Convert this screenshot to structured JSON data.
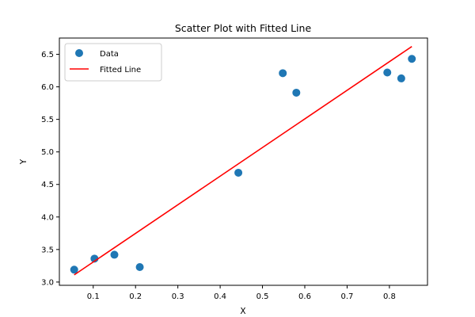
{
  "chart_data": {
    "type": "scatter",
    "title": "Scatter Plot with Fitted Line",
    "xlabel": "X",
    "ylabel": "Y",
    "xlim": [
      0.02,
      0.89
    ],
    "ylim": [
      2.95,
      6.75
    ],
    "xticks": [
      0.1,
      0.2,
      0.3,
      0.4,
      0.5,
      0.6,
      0.7,
      0.8
    ],
    "xtick_labels": [
      "0.1",
      "0.2",
      "0.3",
      "0.4",
      "0.5",
      "0.6",
      "0.7",
      "0.8"
    ],
    "yticks": [
      3.0,
      3.5,
      4.0,
      4.5,
      5.0,
      5.5,
      6.0,
      6.5
    ],
    "ytick_labels": [
      "3.0",
      "3.5",
      "4.0",
      "4.5",
      "5.0",
      "5.5",
      "6.0",
      "6.5"
    ],
    "grid": false,
    "legend_position": "top-left",
    "series": [
      {
        "name": "Data",
        "kind": "scatter",
        "color": "#1f77b4",
        "x": [
          0.055,
          0.103,
          0.15,
          0.21,
          0.443,
          0.548,
          0.58,
          0.795,
          0.828,
          0.853
        ],
        "y": [
          3.19,
          3.36,
          3.42,
          3.23,
          4.68,
          6.21,
          5.91,
          6.22,
          6.13,
          6.43
        ]
      },
      {
        "name": "Fitted Line",
        "kind": "line",
        "color": "#ff0000",
        "x": [
          0.055,
          0.853
        ],
        "y": [
          3.11,
          6.62
        ]
      }
    ]
  }
}
